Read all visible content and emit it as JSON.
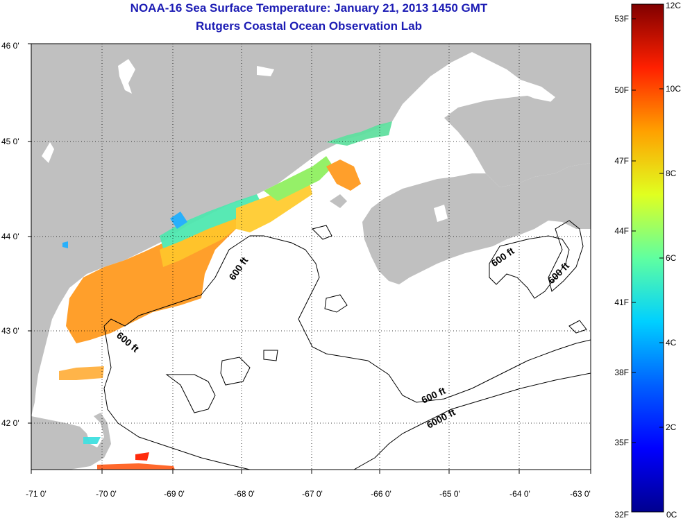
{
  "title": {
    "line1": "NOAA-16 Sea Surface Temperature:  January 21, 2013 1450 GMT",
    "line2": "Rutgers Coastal Ocean Observation Lab"
  },
  "map": {
    "lon_range": [
      -71,
      -63
    ],
    "lat_range": [
      41.5,
      46
    ],
    "lon_ticks": [
      "-71 0'",
      "-70 0'",
      "-69 0'",
      "-68 0'",
      "-67 0'",
      "-66 0'",
      "-65 0'",
      "-64 0'",
      "-63 0'"
    ],
    "lat_ticks": [
      "46 0'",
      "45 0'",
      "44 0'",
      "43 0'",
      "42 0'"
    ],
    "contour_labels": [
      "600 ft",
      "600 ft",
      "600 ft",
      "600 ft",
      "6000 ft"
    ],
    "colors": {
      "land": "#c0c0c0",
      "ocean": "#ffffff",
      "frame": "#000000",
      "title": "#1c1cb4"
    }
  },
  "colorbar": {
    "fahrenheit_ticks": [
      "53F",
      "50F",
      "47F",
      "44F",
      "41F",
      "38F",
      "35F",
      "32F"
    ],
    "celsius_ticks": [
      "12C",
      "10C",
      "8C",
      "6C",
      "4C",
      "2C",
      "0C"
    ],
    "range_c": [
      0,
      12
    ],
    "colors": [
      "#00008f",
      "#0000ff",
      "#0080ff",
      "#00ffff",
      "#80ff80",
      "#ffff00",
      "#ff8000",
      "#ff0000",
      "#800000"
    ]
  }
}
